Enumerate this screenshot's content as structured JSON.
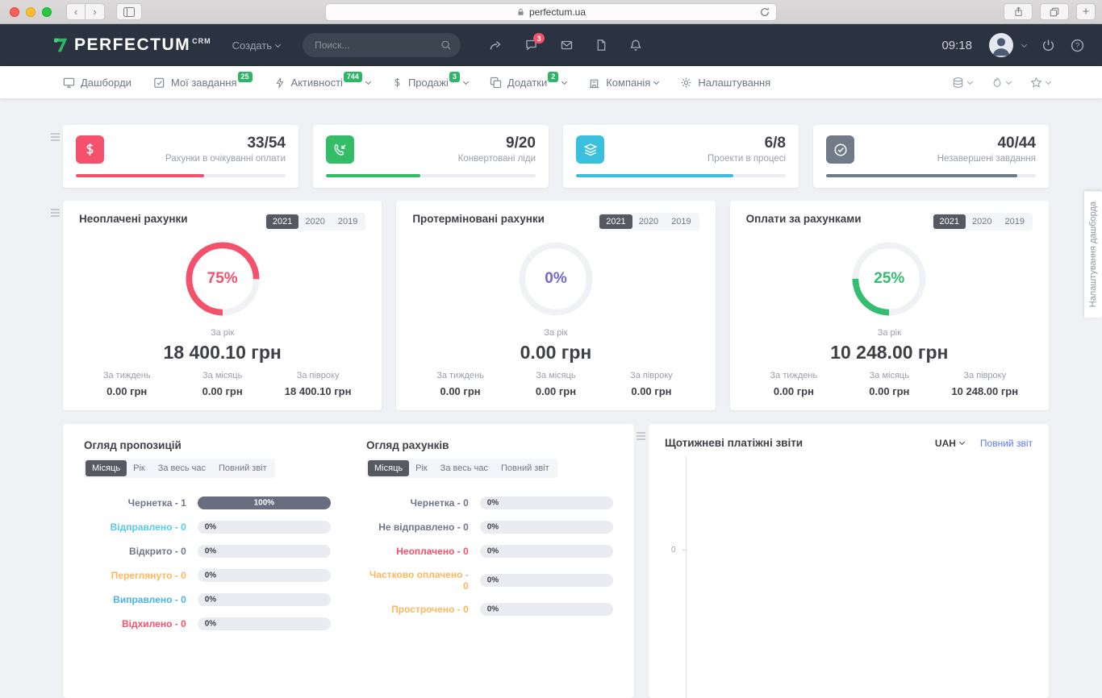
{
  "browser": {
    "url": "perfectum.ua"
  },
  "navbar": {
    "logo": "PERFECTUM",
    "logo_sub": "CRM",
    "create_label": "Создать",
    "search_placeholder": "Поиск...",
    "chat_badge": "3",
    "time": "09:18"
  },
  "subnav": {
    "items": [
      {
        "id": "dashboards",
        "icon": "desktop",
        "label": "Дашборди"
      },
      {
        "id": "my-tasks",
        "icon": "check",
        "label": "Мої завдання",
        "badge": "25"
      },
      {
        "id": "activities",
        "icon": "zap",
        "label": "Активності",
        "badge": "744",
        "chevron": true
      },
      {
        "id": "sales",
        "icon": "dollar",
        "label": "Продажі",
        "badge": "3",
        "chevron": true
      },
      {
        "id": "addons",
        "icon": "copy",
        "label": "Додатки",
        "badge": "2",
        "chevron": true
      },
      {
        "id": "company",
        "icon": "building",
        "label": "Компанія",
        "chevron": true
      },
      {
        "id": "settings",
        "icon": "gear",
        "label": "Налаштування"
      }
    ]
  },
  "stats": [
    {
      "id": "invoices-awaiting",
      "icon": "dollar",
      "value": "33/54",
      "label": "Рахунки в очікуванні оплати",
      "color": "#f4516c",
      "progress": 61
    },
    {
      "id": "converted-leads",
      "icon": "phone",
      "value": "9/20",
      "label": "Конвертовані ліди",
      "color": "#34bd67",
      "progress": 45
    },
    {
      "id": "projects-in-progress",
      "icon": "layers",
      "value": "6/8",
      "label": "Проекти в процесі",
      "color": "#3ac0dd",
      "progress": 75
    },
    {
      "id": "unfinished-tasks",
      "icon": "checkcircle",
      "value": "40/44",
      "label": "Незавершені завдання",
      "color": "#6f7b88",
      "progress": 91
    }
  ],
  "donuts": [
    {
      "title": "Неоплачені рахунки",
      "years": [
        "2021",
        "2020",
        "2019"
      ],
      "active_year": "2021",
      "percent": 75,
      "percent_label": "75%",
      "color": "#f4516c",
      "period_label": "За рік",
      "amount": "18 400.10 грн",
      "cols": [
        {
          "label": "За тиждень",
          "value": "0.00 грн"
        },
        {
          "label": "За місяць",
          "value": "0.00 грн"
        },
        {
          "label": "За півроку",
          "value": "18 400.10 грн"
        }
      ]
    },
    {
      "title": "Протерміновані рахунки",
      "years": [
        "2021",
        "2020",
        "2019"
      ],
      "active_year": "2021",
      "percent": 0,
      "percent_label": "0%",
      "color": "#716aca",
      "period_label": "За рік",
      "amount": "0.00 грн",
      "cols": [
        {
          "label": "За тиждень",
          "value": "0.00 грн"
        },
        {
          "label": "За місяць",
          "value": "0.00 грн"
        },
        {
          "label": "За півроку",
          "value": "0.00 грн"
        }
      ]
    },
    {
      "title": "Оплати за рахунками",
      "years": [
        "2021",
        "2020",
        "2019"
      ],
      "active_year": "2021",
      "percent": 25,
      "percent_label": "25%",
      "color": "#35bd6f",
      "period_label": "За рік",
      "amount": "10 248.00 грн",
      "cols": [
        {
          "label": "За тиждень",
          "value": "0.00 грн"
        },
        {
          "label": "За місяць",
          "value": "0.00 грн"
        },
        {
          "label": "За півроку",
          "value": "10 248.00 грн"
        }
      ]
    }
  ],
  "proposals": {
    "title": "Огляд пропозицій",
    "tabs": [
      "Місяць",
      "Рік",
      "За весь час",
      "Повний звіт"
    ],
    "rows": [
      {
        "label": "Чернетка - 1",
        "color": "#6e7687",
        "bar": 100,
        "bar_label": "100%",
        "bar_color": "#676e80"
      },
      {
        "label": "Відправлено - 0",
        "color": "#5ac8ea",
        "bar": 0,
        "bar_label": "0%"
      },
      {
        "label": "Відкрито - 0",
        "color": "#6e7687",
        "bar": 0,
        "bar_label": "0%"
      },
      {
        "label": "Переглянуто - 0",
        "color": "#ffb65c",
        "bar": 0,
        "bar_label": "0%"
      },
      {
        "label": "Виправлено - 0",
        "color": "#4cb3e8",
        "bar": 0,
        "bar_label": "0%"
      },
      {
        "label": "Відхилено - 0",
        "color": "#f4516c",
        "bar": 0,
        "bar_label": "0%"
      }
    ]
  },
  "invoices": {
    "title": "Огляд рахунків",
    "tabs": [
      "Місяць",
      "Рік",
      "За весь час",
      "Повний звіт"
    ],
    "rows": [
      {
        "label": "Чернетка - 0",
        "color": "#6e7687",
        "bar": 0,
        "bar_label": "0%"
      },
      {
        "label": "Не відправлено - 0",
        "color": "#6e7687",
        "bar": 0,
        "bar_label": "0%"
      },
      {
        "label": "Неоплачено - 0",
        "color": "#f4516c",
        "bar": 0,
        "bar_label": "0%"
      },
      {
        "label": "Частково оплачено - 0",
        "color": "#ffb65c",
        "bar": 0,
        "bar_label": "0%"
      },
      {
        "label": "Прострочено - 0",
        "color": "#ffb65c",
        "bar": 0,
        "bar_label": "0%"
      }
    ]
  },
  "weekly": {
    "title": "Щотижневі платіжні звіти",
    "currency": "UAH",
    "link": "Повний звіт",
    "y_zero": "0"
  },
  "settings_tab": "Налаштування дашборда"
}
